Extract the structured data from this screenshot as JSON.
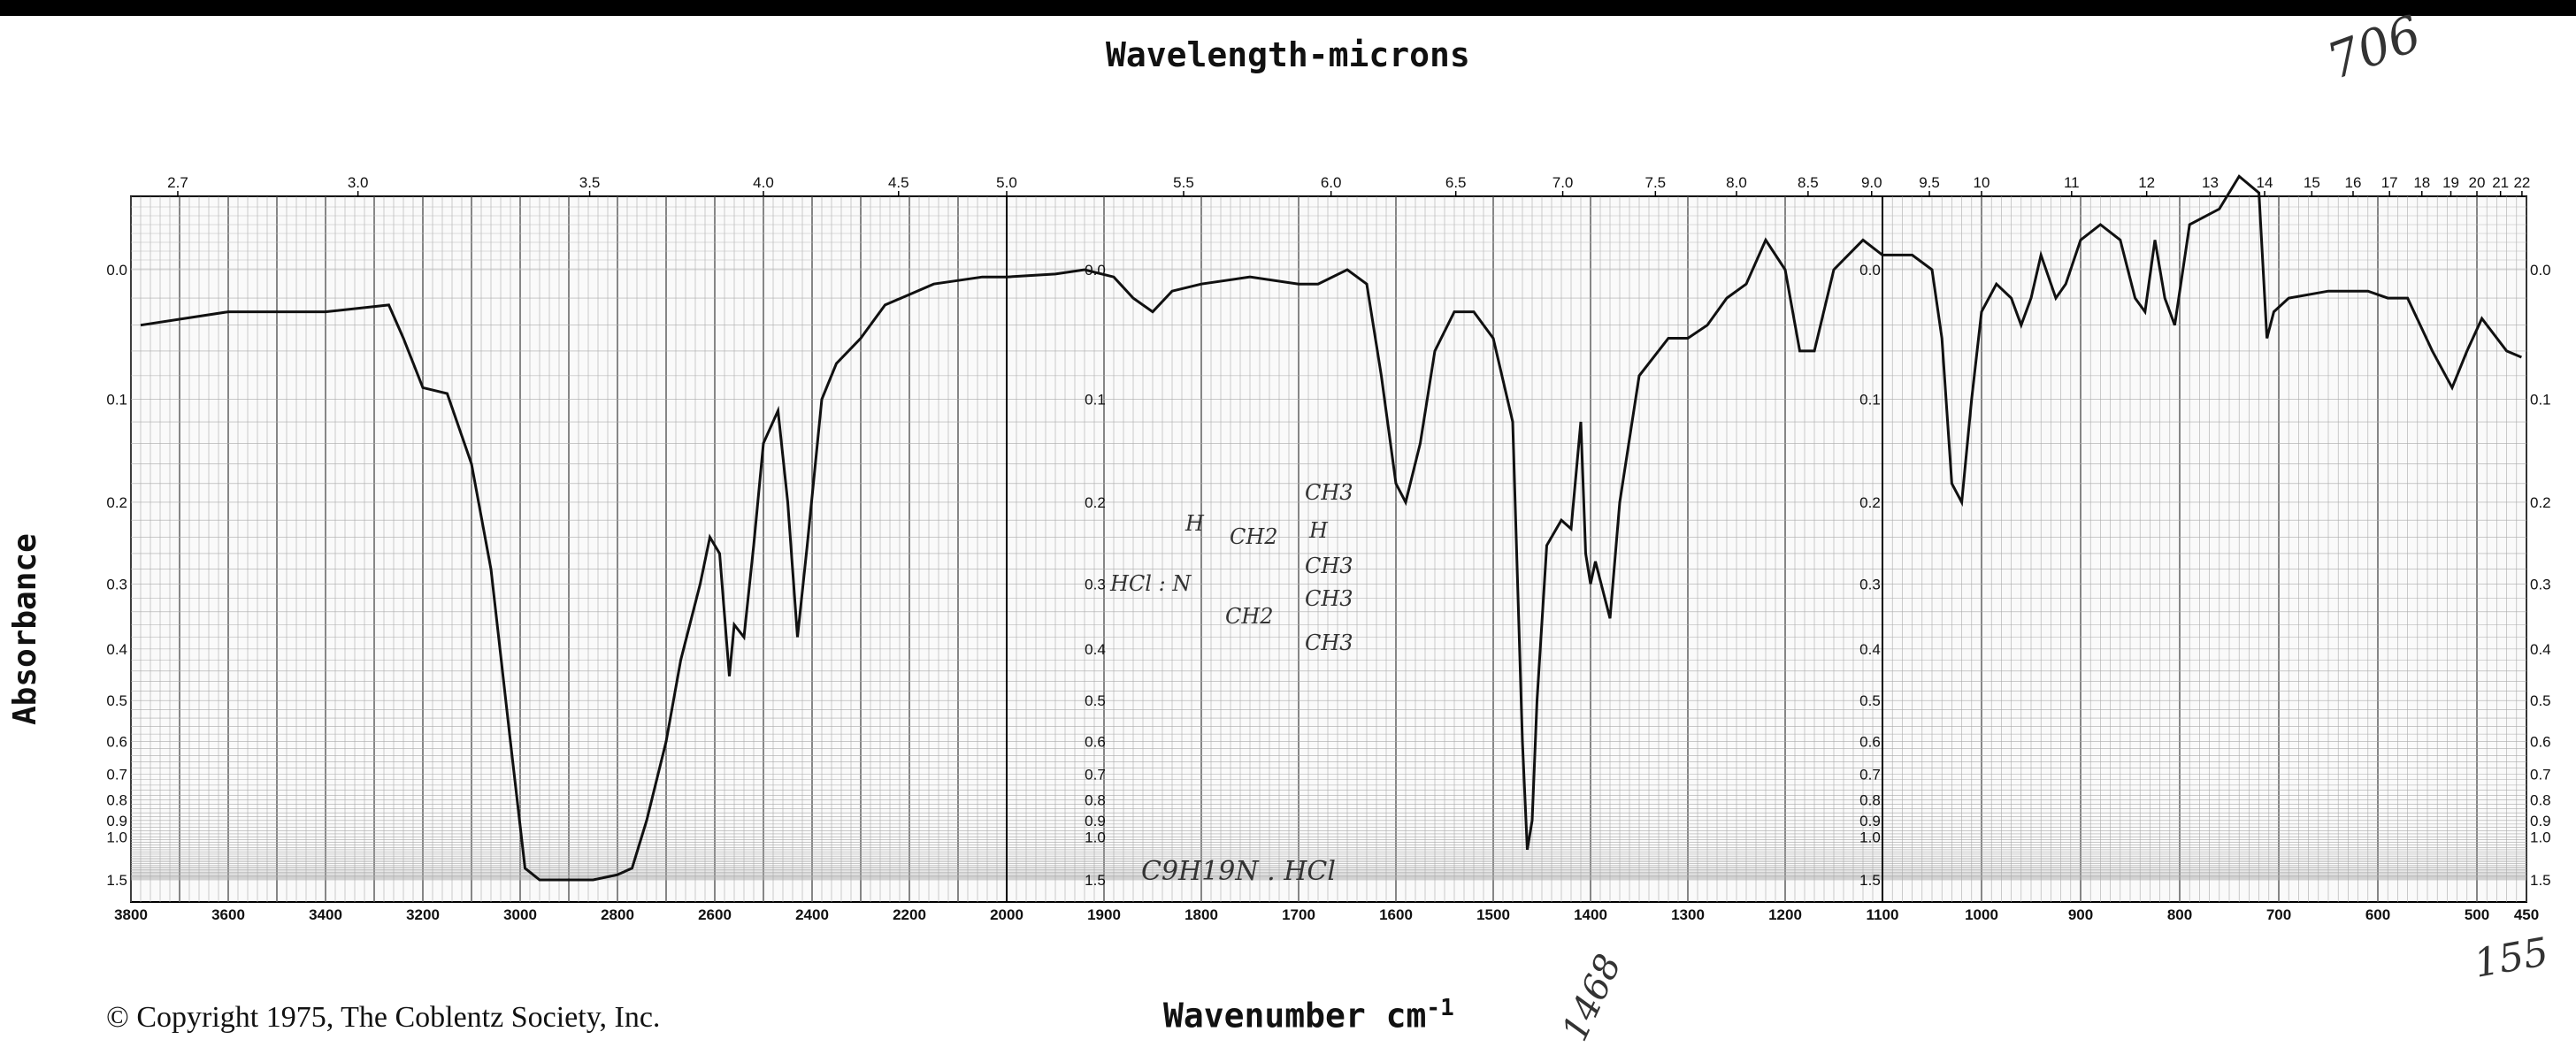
{
  "chart_data": {
    "type": "line",
    "title_top": "Wavelength-microns",
    "xlabel": "Wavenumber cm",
    "xlabel_exponent": "-1",
    "ylabel": "Absorbance",
    "copyright": "© Copyright 1975, The Coblentz Society, Inc.",
    "grid": true,
    "x_axis_segments": [
      {
        "from": 3800,
        "to": 2000
      },
      {
        "from": 2000,
        "to": 1100
      },
      {
        "from": 1100,
        "to": 450
      }
    ],
    "wavenumber_ticks": [
      "3800",
      "3600",
      "3400",
      "3200",
      "3000",
      "2800",
      "2600",
      "2400",
      "2200",
      "2000",
      "1900",
      "1800",
      "1700",
      "1600",
      "1500",
      "1400",
      "1300",
      "1200",
      "1100",
      "1000",
      "900",
      "800",
      "700",
      "600",
      "500",
      "450"
    ],
    "wavelength_ticks": [
      "2.7",
      "3.0",
      "3.5",
      "4.0",
      "4.5",
      "5.0",
      "5.5",
      "6.0",
      "6.5",
      "7.0",
      "7.5",
      "8.0",
      "8.5",
      "9.0",
      "9.5",
      "10",
      "11",
      "12",
      "13",
      "14",
      "15",
      "16",
      "17",
      "18",
      "19",
      "20",
      "21",
      "22"
    ],
    "absorbance_ticks": [
      "0.0",
      "0.1",
      "0.2",
      "0.3",
      "0.4",
      "0.5",
      "0.6",
      "0.7",
      "0.8",
      "0.9",
      "1.0",
      "1.5"
    ],
    "ylim": [
      0,
      1.5
    ],
    "series": [
      {
        "points": [
          [
            3780,
            0.04
          ],
          [
            3600,
            0.03
          ],
          [
            3400,
            0.03
          ],
          [
            3270,
            0.025
          ],
          [
            3240,
            0.05
          ],
          [
            3200,
            0.09
          ],
          [
            3150,
            0.095
          ],
          [
            3100,
            0.16
          ],
          [
            3060,
            0.28
          ],
          [
            3020,
            0.6
          ],
          [
            2990,
            1.3
          ],
          [
            2960,
            1.5
          ],
          [
            2900,
            1.5
          ],
          [
            2850,
            1.5
          ],
          [
            2800,
            1.4
          ],
          [
            2770,
            1.3
          ],
          [
            2740,
            0.9
          ],
          [
            2700,
            0.6
          ],
          [
            2670,
            0.42
          ],
          [
            2630,
            0.3
          ],
          [
            2610,
            0.24
          ],
          [
            2590,
            0.26
          ],
          [
            2570,
            0.45
          ],
          [
            2560,
            0.36
          ],
          [
            2540,
            0.38
          ],
          [
            2520,
            0.25
          ],
          [
            2500,
            0.14
          ],
          [
            2470,
            0.11
          ],
          [
            2450,
            0.2
          ],
          [
            2430,
            0.38
          ],
          [
            2410,
            0.25
          ],
          [
            2380,
            0.1
          ],
          [
            2350,
            0.07
          ],
          [
            2300,
            0.05
          ],
          [
            2250,
            0.025
          ],
          [
            2150,
            0.01
          ],
          [
            2050,
            0.005
          ],
          [
            2000,
            0.005
          ],
          [
            1950,
            0.003
          ],
          [
            1920,
            0.0
          ],
          [
            1890,
            0.005
          ],
          [
            1870,
            0.02
          ],
          [
            1850,
            0.03
          ],
          [
            1830,
            0.015
          ],
          [
            1800,
            0.01
          ],
          [
            1750,
            0.005
          ],
          [
            1700,
            0.01
          ],
          [
            1680,
            0.01
          ],
          [
            1650,
            0.0
          ],
          [
            1630,
            0.01
          ],
          [
            1615,
            0.08
          ],
          [
            1600,
            0.18
          ],
          [
            1590,
            0.2
          ],
          [
            1575,
            0.14
          ],
          [
            1560,
            0.06
          ],
          [
            1540,
            0.03
          ],
          [
            1520,
            0.03
          ],
          [
            1500,
            0.05
          ],
          [
            1480,
            0.12
          ],
          [
            1470,
            0.6
          ],
          [
            1465,
            1.1
          ],
          [
            1460,
            0.9
          ],
          [
            1455,
            0.5
          ],
          [
            1445,
            0.25
          ],
          [
            1430,
            0.22
          ],
          [
            1420,
            0.23
          ],
          [
            1410,
            0.12
          ],
          [
            1405,
            0.26
          ],
          [
            1400,
            0.3
          ],
          [
            1395,
            0.27
          ],
          [
            1380,
            0.35
          ],
          [
            1370,
            0.2
          ],
          [
            1350,
            0.08
          ],
          [
            1320,
            0.05
          ],
          [
            1300,
            0.05
          ],
          [
            1280,
            0.04
          ],
          [
            1260,
            0.02
          ],
          [
            1240,
            0.01
          ],
          [
            1220,
            -0.02
          ],
          [
            1200,
            0.0
          ],
          [
            1185,
            0.06
          ],
          [
            1170,
            0.06
          ],
          [
            1150,
            0.0
          ],
          [
            1120,
            -0.02
          ],
          [
            1100,
            -0.01
          ],
          [
            1090,
            -0.01
          ],
          [
            1070,
            -0.01
          ],
          [
            1050,
            0.0
          ],
          [
            1040,
            0.05
          ],
          [
            1030,
            0.18
          ],
          [
            1020,
            0.2
          ],
          [
            1010,
            0.1
          ],
          [
            1000,
            0.03
          ],
          [
            985,
            0.01
          ],
          [
            970,
            0.02
          ],
          [
            960,
            0.04
          ],
          [
            950,
            0.02
          ],
          [
            940,
            -0.01
          ],
          [
            925,
            0.02
          ],
          [
            915,
            0.01
          ],
          [
            900,
            -0.02
          ],
          [
            880,
            -0.03
          ],
          [
            860,
            -0.02
          ],
          [
            845,
            0.02
          ],
          [
            835,
            0.03
          ],
          [
            825,
            -0.02
          ],
          [
            815,
            0.02
          ],
          [
            805,
            0.04
          ],
          [
            790,
            -0.03
          ],
          [
            760,
            -0.04
          ],
          [
            740,
            -0.06
          ],
          [
            720,
            -0.05
          ],
          [
            712,
            0.05
          ],
          [
            705,
            0.03
          ],
          [
            690,
            0.02
          ],
          [
            650,
            0.015
          ],
          [
            610,
            0.015
          ],
          [
            590,
            0.02
          ],
          [
            570,
            0.02
          ],
          [
            545,
            0.06
          ],
          [
            525,
            0.09
          ],
          [
            510,
            0.06
          ],
          [
            495,
            0.035
          ],
          [
            470,
            0.06
          ],
          [
            455,
            0.065
          ]
        ]
      }
    ],
    "annotations": {
      "structure": [
        "H",
        "HCl : N",
        "CH2",
        "CH2",
        "CH3",
        "H",
        "CH3",
        "CH3",
        "CH3"
      ],
      "formula": "C9H19N . HCl",
      "margin_notes": [
        "706",
        "1468",
        "155"
      ]
    }
  }
}
